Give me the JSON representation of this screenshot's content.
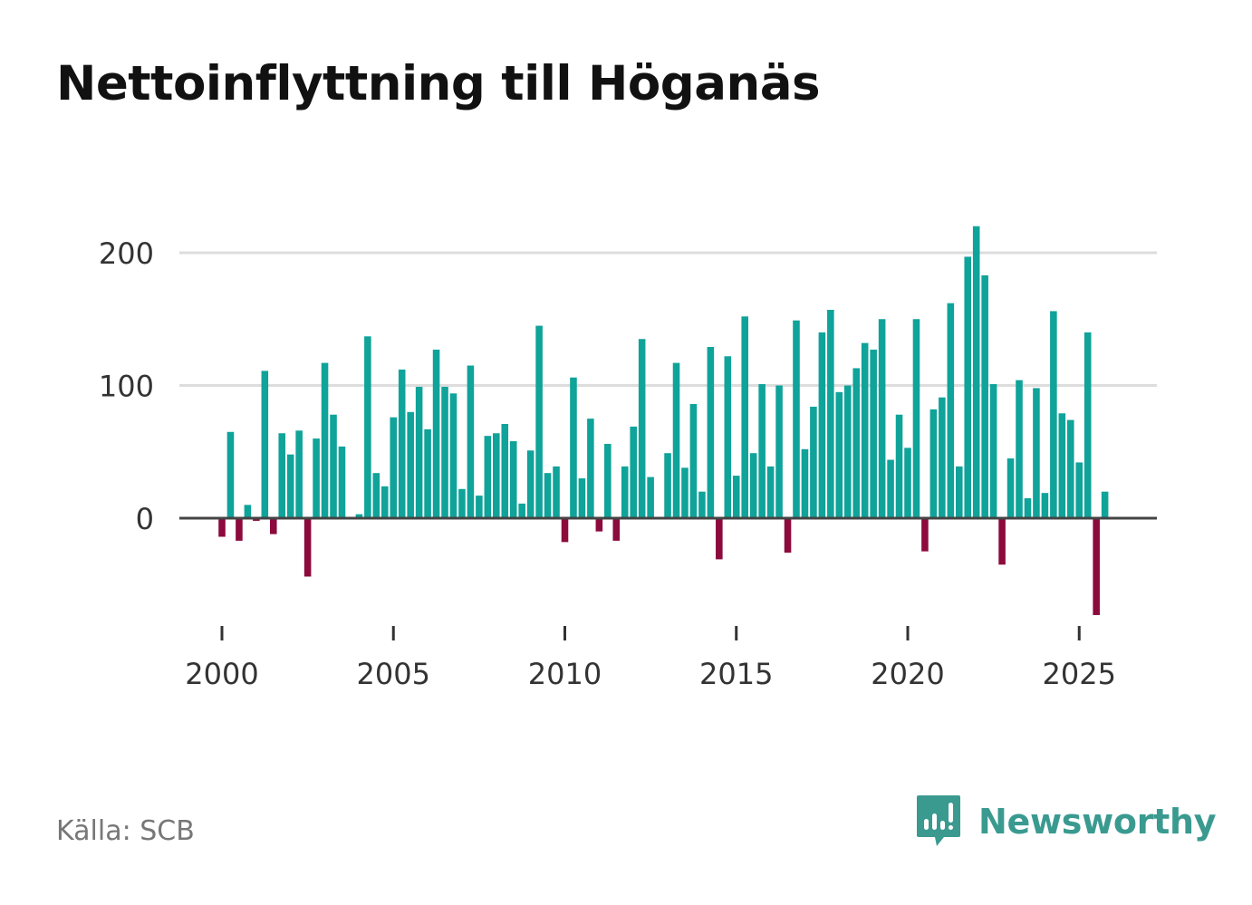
{
  "title": "Nettoinflyttning till Höganäs",
  "source": "Källa: SCB",
  "brand": {
    "name": "Newsworthy",
    "icon": "newsworthy-logo-icon"
  },
  "colors": {
    "positive": "#0fa39a",
    "negative": "#8c0a3c",
    "grid": "#dddddd",
    "zero": "#444444"
  },
  "chart_data": {
    "type": "bar",
    "title": "Nettoinflyttning till Höganäs",
    "xlabel": "",
    "ylabel": "",
    "ylim": [
      -90,
      225
    ],
    "yticks": [
      0,
      100,
      200
    ],
    "xticks": [
      2000,
      2005,
      2010,
      2015,
      2020,
      2025
    ],
    "xlim": [
      1999.5,
      2027.3
    ],
    "grid": true,
    "start_year": 2000,
    "frequency": "quarterly",
    "values": [
      -14,
      65,
      -17,
      10,
      -2,
      111,
      -12,
      64,
      48,
      66,
      -44,
      60,
      117,
      78,
      54,
      0,
      3,
      137,
      34,
      24,
      76,
      112,
      80,
      99,
      67,
      127,
      99,
      94,
      22,
      115,
      17,
      62,
      64,
      71,
      58,
      11,
      51,
      145,
      34,
      39,
      -18,
      106,
      30,
      75,
      -10,
      56,
      -17,
      39,
      69,
      135,
      31,
      0,
      49,
      117,
      38,
      86,
      20,
      129,
      -31,
      122,
      32,
      152,
      49,
      101,
      39,
      100,
      -26,
      149,
      52,
      84,
      140,
      157,
      95,
      100,
      113,
      132,
      127,
      150,
      44,
      78,
      53,
      150,
      -25,
      82,
      91,
      162,
      39,
      197,
      220,
      183,
      101,
      -35,
      45,
      104,
      15,
      98,
      19,
      156,
      79,
      74,
      42,
      140,
      -73,
      20
    ]
  }
}
